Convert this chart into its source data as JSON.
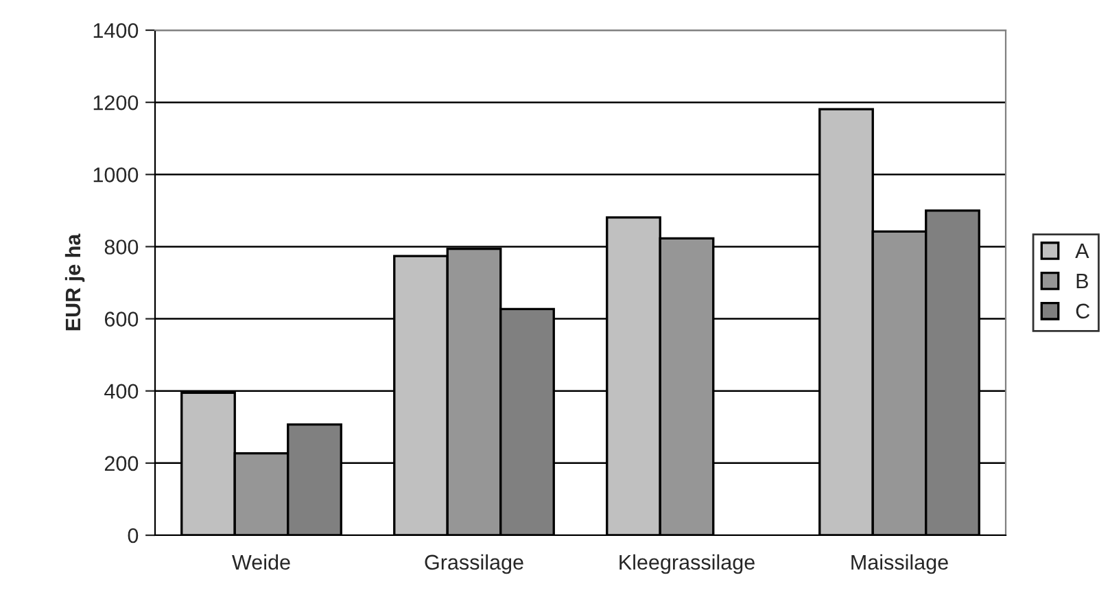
{
  "chart_data": {
    "type": "bar",
    "ylabel": "EUR je ha",
    "categories": [
      "Weide",
      "Grassilage",
      "Kleegrassilage",
      "Maissilage"
    ],
    "series": [
      {
        "name": "A",
        "color": "#c0c0c0",
        "values": [
          395,
          774,
          881,
          1181
        ]
      },
      {
        "name": "B",
        "color": "#969696",
        "values": [
          227,
          794,
          823,
          842
        ]
      },
      {
        "name": "C",
        "color": "#808080",
        "values": [
          307,
          627,
          null,
          900
        ]
      }
    ],
    "ylim": [
      0,
      1400
    ],
    "yticks": [
      0,
      200,
      400,
      600,
      800,
      1000,
      1200,
      1400
    ],
    "grid": "y",
    "legend": "right"
  }
}
